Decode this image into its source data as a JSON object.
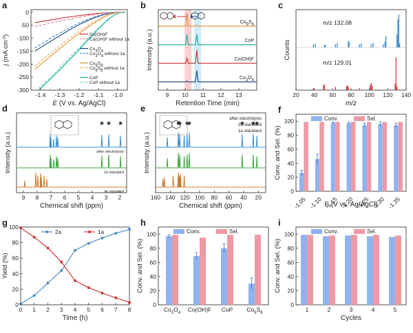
{
  "colors": {
    "red": "#d23a3a",
    "pink": "#e88a96",
    "navy": "#1f4e8c",
    "blue": "#4d8ec7",
    "orange": "#e29a3c",
    "gold": "#f0b463",
    "teal": "#17b09a",
    "mint": "#79d3bd",
    "conv": "#8fb3ef",
    "sel": "#ee9aa4",
    "hlred": "#f7c3c3",
    "hlblue": "#c8e5f7",
    "spec_blue": "#3d8ccc",
    "spec_green": "#3ca33c",
    "spec_orange": "#c8782c"
  },
  "chart_data": [
    {
      "panel": "a",
      "type": "line",
      "xlabel_pre": "E",
      "xlabel_post": " (V vs. Ag/AgCl)",
      "ylabel_pre": "j",
      "ylabel_post": " (mA cm",
      "ylabel_sup": "-2",
      "ylabel_end": ")",
      "xlim": [
        -1.45,
        -0.95
      ],
      "ylim": [
        -300,
        10
      ],
      "xticks": [
        "-1.4",
        "-1.3",
        "-1.2",
        "-1.1",
        "-1.0"
      ],
      "xtick_values": [
        -1.4,
        -1.3,
        -1.2,
        -1.1,
        -1.0
      ],
      "yticks": [
        "0",
        "-50",
        "-100",
        "-150",
        "-200",
        "-250",
        "-300"
      ],
      "ytick_values": [
        0,
        -50,
        -100,
        -150,
        -200,
        -250,
        -300
      ],
      "series": [
        {
          "name": "Co(OH)F",
          "color": "red",
          "dash": false,
          "x": [
            -1.43,
            -1.35,
            -1.27,
            -1.19,
            -1.12,
            -1.07,
            -1.03,
            -1.0,
            -0.96
          ],
          "y": [
            -40,
            -30,
            -20,
            -12,
            -6,
            -3,
            -1,
            -0.3,
            0
          ]
        },
        {
          "name": "Co(OH)F without 1a",
          "color": "pink",
          "dash": true,
          "x": [
            -1.43,
            -1.35,
            -1.27,
            -1.19,
            -1.12,
            -1.07,
            -1.03,
            -1.0,
            -0.96
          ],
          "y": [
            -55,
            -42,
            -30,
            -18,
            -9,
            -4,
            -1.5,
            -0.4,
            0
          ]
        },
        {
          "name": "Co3O4",
          "color": "navy",
          "dash": false,
          "x": [
            -1.43,
            -1.37,
            -1.31,
            -1.25,
            -1.19,
            -1.13,
            -1.08,
            -1.04,
            -1.0,
            -0.96
          ],
          "y": [
            -150,
            -122,
            -95,
            -68,
            -44,
            -24,
            -11,
            -4,
            -1,
            0
          ]
        },
        {
          "name": "Co3O4 without 1a",
          "color": "blue",
          "dash": true,
          "x": [
            -1.43,
            -1.37,
            -1.31,
            -1.25,
            -1.19,
            -1.13,
            -1.08,
            -1.04,
            -1.0,
            -0.96
          ],
          "y": [
            -138,
            -110,
            -84,
            -60,
            -38,
            -20,
            -9,
            -3,
            -1,
            0
          ]
        },
        {
          "name": "Co9S8",
          "color": "orange",
          "dash": false,
          "x": [
            -1.43,
            -1.37,
            -1.31,
            -1.25,
            -1.19,
            -1.13,
            -1.08,
            -1.04,
            -1.0,
            -0.96
          ],
          "y": [
            -220,
            -182,
            -146,
            -110,
            -76,
            -45,
            -22,
            -8,
            -2,
            0
          ]
        },
        {
          "name": "Co9S8 without 1a",
          "color": "gold",
          "dash": true,
          "x": [
            -1.43,
            -1.37,
            -1.31,
            -1.25,
            -1.19,
            -1.13,
            -1.08,
            -1.04,
            -1.0,
            -0.96
          ],
          "y": [
            -208,
            -170,
            -135,
            -100,
            -68,
            -40,
            -19,
            -7,
            -2,
            0
          ]
        },
        {
          "name": "CoP",
          "color": "teal",
          "dash": false,
          "x": [
            -1.41,
            -1.35,
            -1.29,
            -1.23,
            -1.17,
            -1.11,
            -1.06,
            -1.02,
            -0.99,
            -0.96
          ],
          "y": [
            -300,
            -258,
            -214,
            -168,
            -120,
            -72,
            -35,
            -12,
            -3,
            0
          ]
        },
        {
          "name": "CoP without 1a",
          "color": "mint",
          "dash": true,
          "x": [
            -1.41,
            -1.35,
            -1.29,
            -1.23,
            -1.17,
            -1.11,
            -1.06,
            -1.02,
            -0.99,
            -0.96
          ],
          "y": [
            -292,
            -250,
            -206,
            -160,
            -114,
            -68,
            -32,
            -11,
            -3,
            0
          ]
        }
      ]
    },
    {
      "panel": "b",
      "type": "line",
      "xlabel": "Retention Time (min)",
      "ylabel": "Intensity (a.u.)",
      "xlim": [
        8.5,
        14
      ],
      "xticks": [
        "9",
        "10",
        "11",
        "12",
        "13"
      ],
      "xtick_values": [
        9,
        10,
        11,
        12,
        13
      ],
      "peaks_x": [
        10.1,
        10.65
      ],
      "series": [
        {
          "name": "Co9S8",
          "color": "orange",
          "peak_heights": [
            0.78,
            0.08
          ]
        },
        {
          "name": "CoP",
          "color": "teal",
          "peak_heights": [
            0.62,
            0.62
          ]
        },
        {
          "name": "Co(OH)F",
          "color": "red",
          "peak_heights": [
            0.3,
            0.8
          ]
        },
        {
          "name": "Co3O4",
          "color": "navy",
          "peak_heights": [
            0.05,
            0.7
          ]
        }
      ]
    },
    {
      "panel": "c",
      "type": "bar",
      "xlabel": "m/z",
      "ylabel": "Counts",
      "xlim": [
        20,
        140
      ],
      "xticks": [
        "20",
        "40",
        "60",
        "80",
        "100",
        "120",
        "140"
      ],
      "xtick_values": [
        20,
        40,
        60,
        80,
        100,
        120,
        140
      ],
      "series": [
        {
          "name": "m/z 132.08",
          "color": "spec_blue",
          "x": [
            39,
            41,
            51,
            52,
            63,
            65,
            77,
            78,
            89,
            91,
            102,
            104,
            115,
            117,
            118,
            130,
            131,
            132,
            133
          ],
          "values": [
            0.1,
            0.12,
            0.08,
            0.07,
            0.1,
            0.14,
            0.2,
            0.16,
            0.1,
            0.12,
            0.1,
            0.14,
            0.1,
            0.18,
            0.35,
            0.4,
            0.85,
            1.0,
            0.12
          ]
        },
        {
          "name": "m/z 129.01",
          "color": "red",
          "x": [
            39,
            50,
            51,
            63,
            75,
            76,
            77,
            89,
            101,
            102,
            103,
            128,
            129,
            130
          ],
          "values": [
            0.06,
            0.14,
            0.18,
            0.1,
            0.12,
            0.14,
            0.1,
            0.06,
            0.16,
            0.22,
            0.12,
            0.2,
            1.0,
            0.1
          ]
        }
      ]
    },
    {
      "panel": "d",
      "type": "line",
      "xlabel": "Chemical shift (ppm)",
      "ylabel": "Intensity (a.u.)",
      "xlim": [
        9.5,
        1.5
      ],
      "xticks": [
        "9",
        "8",
        "7",
        "6",
        "5",
        "4",
        "3",
        "2"
      ],
      "xtick_values": [
        9,
        8,
        7,
        6,
        5,
        4,
        3,
        2
      ],
      "series": [
        {
          "name": "after electrolysis",
          "color": "spec_blue",
          "peaks": [
            [
              7.05,
              0.8
            ],
            [
              7.0,
              0.6
            ],
            [
              6.8,
              0.5
            ],
            [
              6.6,
              0.7
            ],
            [
              6.5,
              0.6
            ],
            [
              3.3,
              0.75
            ],
            [
              2.8,
              0.8
            ],
            [
              1.95,
              0.7
            ]
          ]
        },
        {
          "name": "2a standard",
          "color": "spec_green",
          "peaks": [
            [
              7.05,
              0.8
            ],
            [
              7.0,
              0.6
            ],
            [
              6.8,
              0.5
            ],
            [
              6.6,
              0.7
            ],
            [
              6.5,
              0.6
            ],
            [
              3.3,
              0.75
            ],
            [
              2.8,
              0.8
            ],
            [
              1.95,
              0.7
            ]
          ]
        },
        {
          "name": "1a standard",
          "color": "spec_orange",
          "peaks": [
            [
              8.9,
              0.4
            ],
            [
              8.1,
              0.9
            ],
            [
              7.95,
              0.7
            ],
            [
              7.75,
              0.85
            ],
            [
              7.7,
              0.6
            ],
            [
              7.5,
              0.7
            ],
            [
              7.3,
              0.5
            ]
          ]
        }
      ]
    },
    {
      "panel": "e",
      "type": "line",
      "xlabel": "Chemical shift (ppm)",
      "ylabel": "Intensity (a.u.)",
      "xlim": [
        160,
        10
      ],
      "xticks": [
        "160",
        "140",
        "120",
        "100",
        "80",
        "60",
        "40",
        "20"
      ],
      "xtick_values": [
        160,
        140,
        120,
        100,
        80,
        60,
        40,
        20
      ],
      "series": [
        {
          "name": "after electrolysis",
          "color": "spec_blue",
          "peaks": [
            [
              144,
              0.6
            ],
            [
              129,
              0.9
            ],
            [
              127,
              0.8
            ],
            [
              121,
              0.7
            ],
            [
              117,
              0.8
            ],
            [
              114,
              0.9
            ],
            [
              42,
              0.8
            ],
            [
              27,
              0.8
            ],
            [
              22,
              0.7
            ]
          ]
        },
        {
          "name": "2a standard",
          "color": "spec_green",
          "peaks": [
            [
              144,
              0.6
            ],
            [
              129,
              0.9
            ],
            [
              127,
              0.8
            ],
            [
              121,
              0.7
            ],
            [
              117,
              0.8
            ],
            [
              114,
              0.9
            ],
            [
              42,
              0.8
            ],
            [
              27,
              0.8
            ],
            [
              22,
              0.7
            ]
          ]
        },
        {
          "name": "1a standard",
          "color": "spec_orange",
          "peaks": [
            [
              150,
              0.5
            ],
            [
              148,
              0.6
            ],
            [
              136,
              0.7
            ],
            [
              129,
              0.9
            ],
            [
              128,
              0.7
            ],
            [
              127,
              0.6
            ],
            [
              126,
              0.8
            ],
            [
              121,
              0.7
            ]
          ]
        }
      ]
    },
    {
      "panel": "f",
      "type": "bar",
      "xlabel": "E (V vs. Ag/AgCl)",
      "ylabel": "Conv. and Sel. (%)",
      "ylim": [
        0,
        100
      ],
      "yticks": [
        "0",
        "20",
        "40",
        "60",
        "80",
        "100"
      ],
      "ytick_values": [
        0,
        20,
        40,
        60,
        80,
        100
      ],
      "categories": [
        "-1.05",
        "-1.10",
        "-1.15",
        "-1.20",
        "-1.25",
        "-1.30",
        "-1.35"
      ],
      "series": [
        {
          "name": "Conv.",
          "color": "conv",
          "values": [
            26,
            46,
            98,
            97,
            94,
            96,
            94
          ],
          "err": [
            4,
            7,
            1,
            2,
            3,
            3,
            3
          ]
        },
        {
          "name": "Sel.",
          "color": "sel",
          "values": [
            99,
            99,
            99,
            99,
            99,
            99,
            99
          ],
          "err": [
            0,
            0,
            0,
            0,
            0,
            0,
            0
          ]
        }
      ]
    },
    {
      "panel": "g",
      "type": "line",
      "xlabel": "Time (h)",
      "ylabel": "Yield (%)",
      "xlim": [
        0,
        8
      ],
      "ylim": [
        0,
        100
      ],
      "xticks": [
        "0",
        "1",
        "2",
        "3",
        "4",
        "5",
        "6",
        "7",
        "8"
      ],
      "xtick_values": [
        0,
        1,
        2,
        3,
        4,
        5,
        6,
        7,
        8
      ],
      "yticks": [
        "0",
        "20",
        "40",
        "60",
        "80",
        "100"
      ],
      "ytick_values": [
        0,
        20,
        40,
        60,
        80,
        100
      ],
      "series": [
        {
          "name": "2a",
          "color": "blue",
          "x": [
            0,
            1,
            2,
            3,
            4,
            5,
            6,
            7,
            8
          ],
          "values": [
            1,
            12,
            28,
            44,
            70,
            79,
            86,
            92,
            97
          ]
        },
        {
          "name": "1a",
          "color": "red",
          "x": [
            0,
            1,
            2,
            3,
            4,
            5,
            6,
            7,
            8
          ],
          "values": [
            99,
            87,
            73,
            55,
            31,
            22,
            15,
            9,
            3
          ]
        }
      ]
    },
    {
      "panel": "h",
      "type": "bar",
      "ylabel": "Conv. and Sel. (%)",
      "ylim": [
        0,
        100
      ],
      "yticks": [
        "0",
        "20",
        "40",
        "60",
        "80",
        "100"
      ],
      "ytick_values": [
        0,
        20,
        40,
        60,
        80,
        100
      ],
      "categories": [
        "Co3O4",
        "Co(OH)F",
        "CoP",
        "Co9S8"
      ],
      "series": [
        {
          "name": "Conv.",
          "color": "conv",
          "values": [
            97,
            69,
            80,
            30
          ],
          "err": [
            2,
            5,
            6,
            8
          ]
        },
        {
          "name": "Sel.",
          "color": "sel",
          "values": [
            99,
            95,
            99,
            99
          ],
          "err": [
            0,
            0,
            0,
            0
          ]
        }
      ]
    },
    {
      "panel": "i",
      "type": "bar",
      "xlabel": "Cycles",
      "ylabel": "Conv. and Sel. (%)",
      "ylim": [
        0,
        100
      ],
      "yticks": [
        "0",
        "20",
        "40",
        "60",
        "80",
        "100"
      ],
      "ytick_values": [
        0,
        20,
        40,
        60,
        80,
        100
      ],
      "categories": [
        "1",
        "2",
        "3",
        "4",
        "5"
      ],
      "series": [
        {
          "name": "Conv.",
          "color": "conv",
          "values": [
            99,
            97,
            98,
            97,
            96
          ],
          "err": [
            0,
            0,
            0,
            0,
            0
          ]
        },
        {
          "name": "Sel.",
          "color": "sel",
          "values": [
            99,
            98,
            99,
            99,
            98
          ],
          "err": [
            0,
            0,
            0,
            0,
            0
          ]
        }
      ]
    }
  ]
}
